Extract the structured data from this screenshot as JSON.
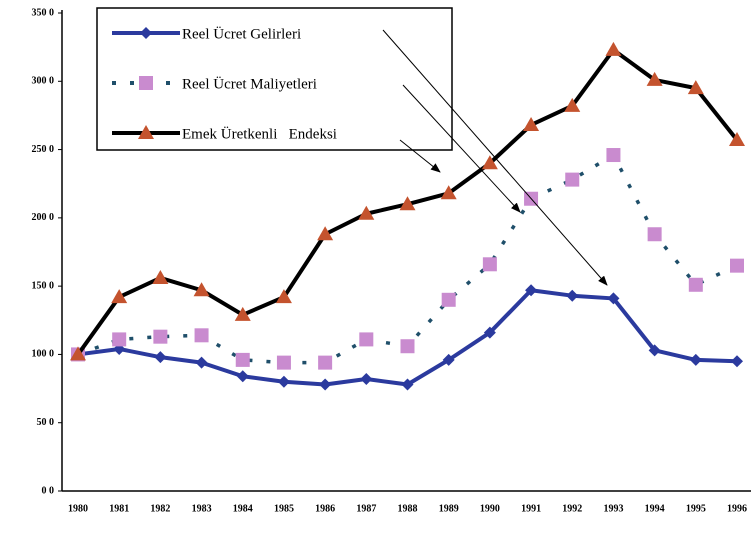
{
  "chart_data": {
    "type": "line",
    "categories": [
      "1980",
      "1981",
      "1982",
      "1983",
      "1984",
      "1985",
      "1986",
      "1987",
      "1988",
      "1989",
      "1990",
      "1991",
      "1992",
      "1993",
      "1994",
      "1995",
      "1996"
    ],
    "series": [
      {
        "name": "Reel Ücret Gelirleri",
        "color": "#2b3a9e",
        "line_color": "#2b3a9e",
        "dash": false,
        "marker": "diamond",
        "values": [
          100,
          104,
          98,
          94,
          84,
          80,
          78,
          82,
          78,
          96,
          116,
          147,
          143,
          141,
          103,
          96,
          95
        ]
      },
      {
        "name": "Reel Ücret Maliyetleri",
        "color": "#c98bcf",
        "line_color": "#1f4f6a",
        "dash": true,
        "marker": "square",
        "values": [
          100,
          111,
          113,
          114,
          96,
          94,
          94,
          111,
          106,
          140,
          166,
          214,
          228,
          246,
          188,
          151,
          165
        ]
      },
      {
        "name": "Emek Üretkenli   Endeksi",
        "color": "#c4532e",
        "line_color": "#000000",
        "dash": false,
        "marker": "triangle",
        "values": [
          100,
          142,
          156,
          147,
          129,
          142,
          188,
          203,
          210,
          218,
          240,
          268,
          282,
          323,
          301,
          295,
          257
        ]
      }
    ],
    "ylim": [
      0,
      350
    ],
    "yticks": [
      {
        "value": 0,
        "label": "0 0"
      },
      {
        "value": 50,
        "label": "50 0"
      },
      {
        "value": 100,
        "label": "100 0"
      },
      {
        "value": 150,
        "label": "150 0"
      },
      {
        "value": 200,
        "label": "200 0"
      },
      {
        "value": 250,
        "label": "250 0"
      },
      {
        "value": 300,
        "label": "300 0"
      },
      {
        "value": 350,
        "label": "350 0"
      }
    ],
    "grid": false,
    "legend": "top-left"
  }
}
